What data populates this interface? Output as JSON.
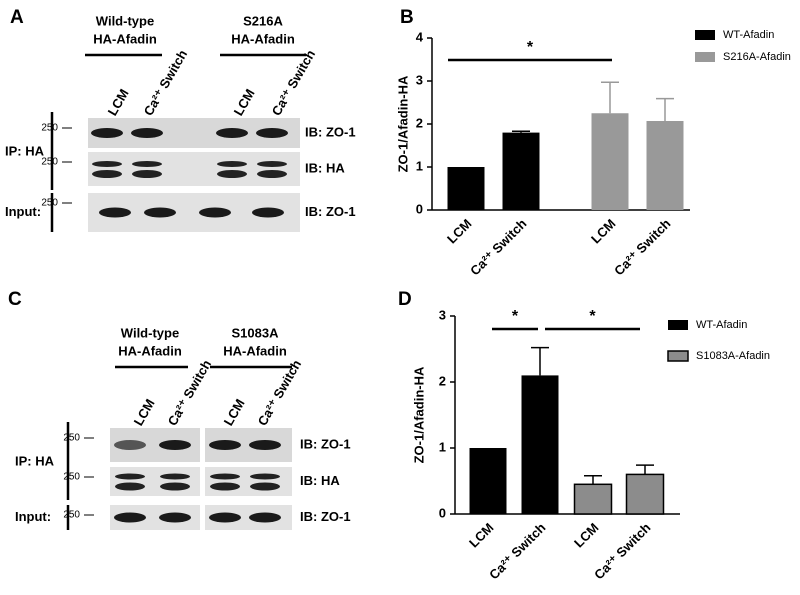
{
  "figure": {
    "A": {
      "letter": "A",
      "groups": [
        [
          "Wild-type",
          "HA-Afadin"
        ],
        [
          "S216A",
          "HA-Afadin"
        ]
      ],
      "lanes": [
        "LCM",
        "Ca²⁺ Switch"
      ],
      "marker": "250",
      "ip": "IP: HA",
      "input": "Input:",
      "ib": [
        "IB: ZO-1",
        "IB: HA",
        "IB: ZO-1"
      ]
    },
    "C": {
      "letter": "C",
      "groups": [
        [
          "Wild-type",
          "HA-Afadin"
        ],
        [
          "S1083A",
          "HA-Afadin"
        ]
      ],
      "lanes": [
        "LCM",
        "Ca²⁺ Switch"
      ],
      "marker": "250",
      "ip": "IP: HA",
      "input": "Input:",
      "ib": [
        "IB: ZO-1",
        "IB: HA",
        "IB: ZO-1"
      ]
    }
  },
  "chart_data": [
    {
      "type": "bar",
      "panel": "B",
      "ylabel": "ZO-1/Afadin-HA",
      "categories": [
        "LCM",
        "Ca²⁺ Switch",
        "LCM",
        "Ca²⁺ Switch"
      ],
      "series": [
        {
          "name": "WT-Afadin",
          "color": "#000000",
          "values": [
            1.0,
            1.8,
            null,
            null
          ],
          "errors": [
            null,
            0.03,
            null,
            null
          ]
        },
        {
          "name": "S216A-Afadin",
          "color": "#999999",
          "values": [
            null,
            null,
            2.25,
            2.07
          ],
          "errors": [
            null,
            null,
            0.72,
            0.52
          ]
        }
      ],
      "ylim": [
        0,
        4
      ],
      "yticks": [
        0,
        1,
        2,
        3,
        4
      ],
      "annotations": [
        "*"
      ],
      "legend": "upper right"
    },
    {
      "type": "bar",
      "panel": "D",
      "ylabel": "ZO-1/Afadin-HA",
      "categories": [
        "LCM",
        "Ca²⁺ Switch",
        "LCM",
        "Ca²⁺ Switch"
      ],
      "series": [
        {
          "name": "WT-Afadin",
          "color": "#000000",
          "values": [
            1.0,
            2.1,
            null,
            null
          ],
          "errors": [
            null,
            0.42,
            null,
            null
          ]
        },
        {
          "name": "S1083A-Afadin",
          "color": "#8c8c8c",
          "edgecolor": "#000000",
          "values": [
            null,
            null,
            0.45,
            0.6
          ],
          "errors": [
            null,
            null,
            0.13,
            0.14
          ]
        }
      ],
      "ylim": [
        0,
        3
      ],
      "yticks": [
        0,
        1,
        2,
        3
      ],
      "annotations": [
        "*",
        "*"
      ],
      "legend": "upper right"
    }
  ]
}
